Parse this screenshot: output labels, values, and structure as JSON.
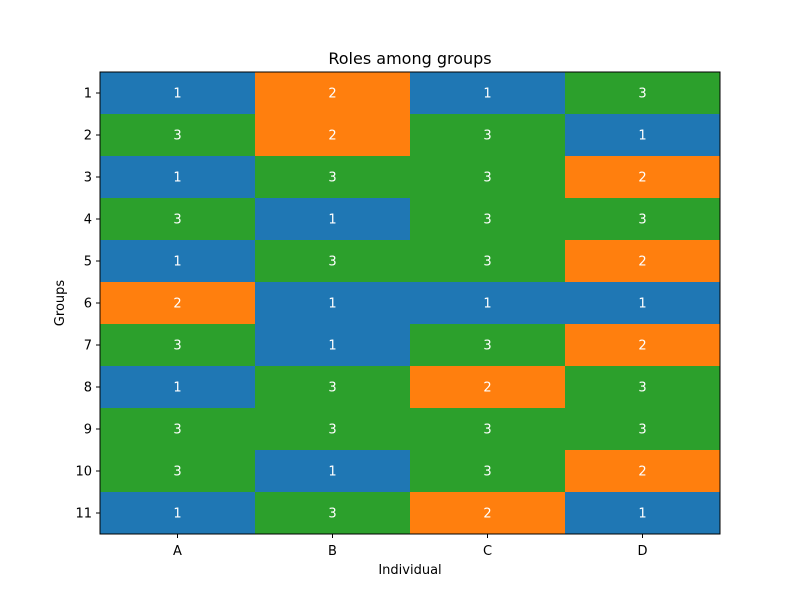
{
  "chart_data": {
    "type": "heatmap",
    "title": "Roles among groups",
    "xlabel": "Individual",
    "ylabel": "Groups",
    "x_categories": [
      "A",
      "B",
      "C",
      "D"
    ],
    "y_categories": [
      "1",
      "2",
      "3",
      "4",
      "5",
      "6",
      "7",
      "8",
      "9",
      "10",
      "11"
    ],
    "values": [
      [
        1,
        2,
        1,
        3
      ],
      [
        3,
        2,
        3,
        1
      ],
      [
        1,
        3,
        3,
        2
      ],
      [
        3,
        1,
        3,
        3
      ],
      [
        1,
        3,
        3,
        2
      ],
      [
        2,
        1,
        1,
        1
      ],
      [
        3,
        1,
        3,
        2
      ],
      [
        1,
        3,
        2,
        3
      ],
      [
        3,
        3,
        3,
        3
      ],
      [
        3,
        1,
        3,
        2
      ],
      [
        1,
        3,
        2,
        1
      ]
    ],
    "color_map": {
      "1": "#1f77b4",
      "2": "#ff7f0e",
      "3": "#2ca02c"
    },
    "cell_text_color": "#ffffff",
    "grid": false,
    "legend": "none"
  }
}
